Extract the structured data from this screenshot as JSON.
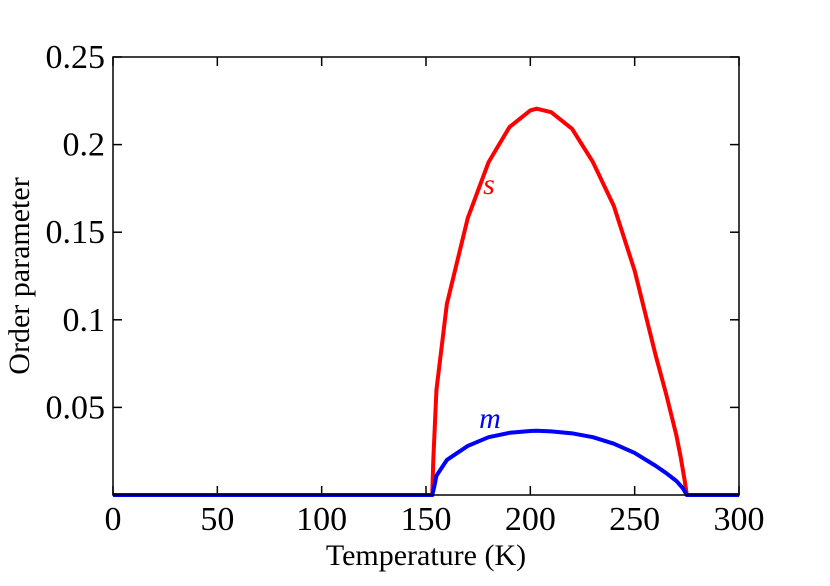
{
  "chart_data": {
    "type": "line",
    "title": "",
    "xlabel": "Temperature (K)",
    "ylabel": "Order parameter",
    "xlim": [
      0,
      300
    ],
    "ylim": [
      0,
      0.25
    ],
    "x_ticks": [
      "0",
      "50",
      "100",
      "150",
      "200",
      "250",
      "300"
    ],
    "y_ticks": [
      "0.05",
      "0.1",
      "0.15",
      "0.2",
      "0.25"
    ],
    "grid": false,
    "legend": "none",
    "series": [
      {
        "name": "s",
        "color": "#ff0000",
        "x": [
          0,
          100,
          153,
          153.5,
          155,
          160,
          170,
          180,
          190,
          200,
          203,
          210,
          220,
          230,
          240,
          250,
          260,
          265,
          270,
          272,
          274,
          275,
          285,
          300
        ],
        "y": [
          0,
          0,
          0,
          0.02,
          0.06,
          0.109,
          0.158,
          0.19,
          0.21,
          0.2195,
          0.2205,
          0.2185,
          0.209,
          0.19,
          0.165,
          0.128,
          0.08,
          0.058,
          0.034,
          0.022,
          0.008,
          0,
          0,
          0
        ]
      },
      {
        "name": "m",
        "color": "#0000ff",
        "x": [
          0,
          100,
          153,
          154,
          155,
          160,
          170,
          180,
          190,
          200,
          203,
          210,
          220,
          230,
          240,
          250,
          260,
          265,
          270,
          273,
          275,
          285,
          300
        ],
        "y": [
          0,
          0,
          0,
          0.005,
          0.011,
          0.02,
          0.028,
          0.033,
          0.0355,
          0.0365,
          0.0367,
          0.0363,
          0.0352,
          0.033,
          0.0293,
          0.024,
          0.0167,
          0.0126,
          0.008,
          0.004,
          0,
          0,
          0
        ]
      }
    ]
  }
}
